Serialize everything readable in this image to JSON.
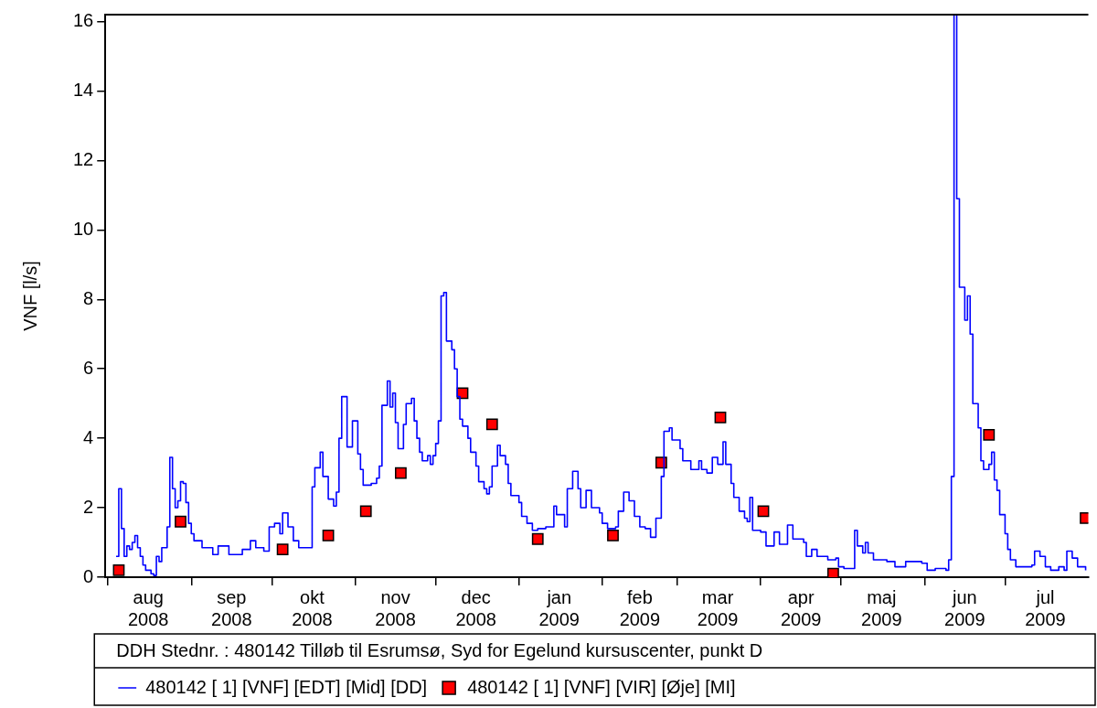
{
  "chart_data": {
    "type": "step",
    "ylabel": "VNF [l/s]",
    "legend_title": "DDH Stednr. : 480142 Tilløb til Esrumsø, Syd for Egelund kursuscenter, punkt D",
    "legend": "bottom",
    "grid": false,
    "xlim": [
      "2008-07-31",
      "2009-08-01"
    ],
    "xticks": [
      {
        "value": "2008-08-01",
        "label": null
      },
      {
        "value": "2008-08-16",
        "label": "aug 2008"
      },
      {
        "value": "2008-09-01",
        "label": null
      },
      {
        "value": "2008-09-16",
        "label": "sep 2008"
      },
      {
        "value": "2008-10-01",
        "label": null
      },
      {
        "value": "2008-10-16",
        "label": "okt 2008"
      },
      {
        "value": "2008-11-01",
        "label": null
      },
      {
        "value": "2008-11-16",
        "label": "nov 2008"
      },
      {
        "value": "2008-12-01",
        "label": null
      },
      {
        "value": "2008-12-16",
        "label": "dec 2008"
      },
      {
        "value": "2009-01-01",
        "label": null
      },
      {
        "value": "2009-01-16",
        "label": "jan 2009"
      },
      {
        "value": "2009-02-01",
        "label": null
      },
      {
        "value": "2009-02-15",
        "label": "feb 2009"
      },
      {
        "value": "2009-03-01",
        "label": null
      },
      {
        "value": "2009-03-16",
        "label": "mar 2009"
      },
      {
        "value": "2009-04-01",
        "label": null
      },
      {
        "value": "2009-04-16",
        "label": "apr 2009"
      },
      {
        "value": "2009-05-01",
        "label": null
      },
      {
        "value": "2009-05-16",
        "label": "maj 2009"
      },
      {
        "value": "2009-06-01",
        "label": null
      },
      {
        "value": "2009-06-16",
        "label": "jun 2009"
      },
      {
        "value": "2009-07-01",
        "label": null
      },
      {
        "value": "2009-07-16",
        "label": "jul 2009"
      }
    ],
    "ylim": [
      0,
      16.2
    ],
    "yticks": [
      0,
      2,
      4,
      6,
      8,
      10,
      12,
      14,
      16
    ],
    "series": [
      {
        "name": "480142 [ 1] [VNF] [EDT] [Mid] [DD]",
        "color": "#0000ff",
        "marker": "none",
        "line_style": "solid",
        "x": [
          "2008-08-04",
          "2008-08-05",
          "2008-08-06",
          "2008-08-07",
          "2008-08-08",
          "2008-08-09",
          "2008-08-10",
          "2008-08-11",
          "2008-08-12",
          "2008-08-13",
          "2008-08-14",
          "2008-08-15",
          "2008-08-17",
          "2008-08-18",
          "2008-08-19",
          "2008-08-20",
          "2008-08-21",
          "2008-08-23",
          "2008-08-24",
          "2008-08-25",
          "2008-08-26",
          "2008-08-27",
          "2008-08-28",
          "2008-08-29",
          "2008-08-30",
          "2008-08-31",
          "2008-09-01",
          "2008-09-02",
          "2008-09-05",
          "2008-09-09",
          "2008-09-11",
          "2008-09-15",
          "2008-09-20",
          "2008-09-23",
          "2008-09-25",
          "2008-09-28",
          "2008-09-30",
          "2008-10-02",
          "2008-10-04",
          "2008-10-05",
          "2008-10-07",
          "2008-10-09",
          "2008-10-11",
          "2008-10-15",
          "2008-10-16",
          "2008-10-17",
          "2008-10-19",
          "2008-10-20",
          "2008-10-22",
          "2008-10-24",
          "2008-10-25",
          "2008-10-26",
          "2008-10-27",
          "2008-10-29",
          "2008-10-31",
          "2008-11-02",
          "2008-11-03",
          "2008-11-04",
          "2008-11-07",
          "2008-11-09",
          "2008-11-10",
          "2008-11-11",
          "2008-11-13",
          "2008-11-14",
          "2008-11-15",
          "2008-11-16",
          "2008-11-17",
          "2008-11-19",
          "2008-11-20",
          "2008-11-22",
          "2008-11-23",
          "2008-11-24",
          "2008-11-25",
          "2008-11-26",
          "2008-11-28",
          "2008-11-29",
          "2008-11-30",
          "2008-12-01",
          "2008-12-02",
          "2008-12-03",
          "2008-12-04",
          "2008-12-05",
          "2008-12-07",
          "2008-12-08",
          "2008-12-09",
          "2008-12-10",
          "2008-12-11",
          "2008-12-13",
          "2008-12-14",
          "2008-12-16",
          "2008-12-17",
          "2008-12-19",
          "2008-12-20",
          "2008-12-21",
          "2008-12-22",
          "2008-12-24",
          "2008-12-25",
          "2008-12-27",
          "2008-12-28",
          "2008-12-29",
          "2009-01-01",
          "2009-01-02",
          "2009-01-04",
          "2009-01-06",
          "2009-01-08",
          "2009-01-11",
          "2009-01-14",
          "2009-01-15",
          "2009-01-18",
          "2009-01-19",
          "2009-01-21",
          "2009-01-23",
          "2009-01-24",
          "2009-01-26",
          "2009-01-28",
          "2009-01-31",
          "2009-02-01",
          "2009-02-03",
          "2009-02-06",
          "2009-02-07",
          "2009-02-09",
          "2009-02-11",
          "2009-02-13",
          "2009-02-15",
          "2009-02-17",
          "2009-02-19",
          "2009-02-21",
          "2009-02-23",
          "2009-02-24",
          "2009-02-26",
          "2009-02-27",
          "2009-03-02",
          "2009-03-03",
          "2009-03-06",
          "2009-03-09",
          "2009-03-10",
          "2009-03-12",
          "2009-03-14",
          "2009-03-16",
          "2009-03-18",
          "2009-03-19",
          "2009-03-21",
          "2009-03-22",
          "2009-03-24",
          "2009-03-26",
          "2009-03-27",
          "2009-03-28",
          "2009-03-29",
          "2009-04-01",
          "2009-04-03",
          "2009-04-06",
          "2009-04-08",
          "2009-04-11",
          "2009-04-13",
          "2009-04-17",
          "2009-04-18",
          "2009-04-20",
          "2009-04-22",
          "2009-04-26",
          "2009-04-29",
          "2009-04-30",
          "2009-05-02",
          "2009-05-05",
          "2009-05-06",
          "2009-05-07",
          "2009-05-09",
          "2009-05-10",
          "2009-05-11",
          "2009-05-13",
          "2009-05-18",
          "2009-05-21",
          "2009-05-25",
          "2009-05-31",
          "2009-06-02",
          "2009-06-05",
          "2009-06-09",
          "2009-06-10",
          "2009-06-11",
          "2009-06-12",
          "2009-06-13",
          "2009-06-14",
          "2009-06-16",
          "2009-06-17",
          "2009-06-18",
          "2009-06-19",
          "2009-06-21",
          "2009-06-22",
          "2009-06-23",
          "2009-06-25",
          "2009-06-26",
          "2009-06-27",
          "2009-06-28",
          "2009-06-29",
          "2009-07-01",
          "2009-07-02",
          "2009-07-03",
          "2009-07-05",
          "2009-07-11",
          "2009-07-12",
          "2009-07-14",
          "2009-07-16",
          "2009-07-18",
          "2009-07-21",
          "2009-07-23",
          "2009-07-24",
          "2009-07-26",
          "2009-07-28",
          "2009-07-31"
        ],
        "values": [
          0.6,
          2.55,
          1.4,
          0.6,
          0.9,
          0.8,
          1.0,
          1.2,
          0.85,
          0.6,
          0.35,
          0.2,
          0.1,
          0.05,
          0.6,
          0.45,
          0.85,
          1.45,
          3.45,
          2.55,
          2.0,
          2.2,
          2.75,
          2.7,
          2.15,
          1.55,
          1.25,
          1.05,
          0.85,
          0.65,
          0.9,
          0.65,
          0.8,
          1.05,
          0.85,
          0.75,
          1.45,
          1.55,
          1.25,
          1.85,
          1.45,
          1.05,
          0.85,
          0.85,
          2.6,
          3.15,
          3.6,
          2.9,
          2.25,
          2.05,
          2.45,
          4.0,
          5.2,
          3.75,
          4.5,
          3.55,
          3.1,
          2.65,
          2.7,
          2.85,
          3.2,
          4.95,
          5.65,
          4.9,
          5.3,
          4.45,
          3.7,
          4.4,
          5.0,
          5.15,
          4.5,
          4.0,
          3.6,
          3.35,
          3.5,
          3.25,
          3.5,
          3.85,
          4.5,
          8.1,
          8.2,
          6.8,
          6.55,
          6.0,
          5.2,
          4.55,
          4.35,
          4.0,
          3.6,
          3.2,
          2.75,
          2.55,
          2.4,
          2.6,
          3.2,
          3.8,
          3.5,
          3.25,
          2.7,
          2.35,
          2.15,
          1.75,
          1.55,
          1.35,
          1.4,
          1.45,
          2.05,
          1.8,
          1.45,
          2.55,
          3.05,
          2.55,
          2.0,
          2.5,
          2.0,
          1.85,
          1.55,
          1.4,
          1.45,
          1.9,
          2.45,
          2.2,
          1.75,
          1.45,
          1.4,
          1.15,
          1.7,
          2.9,
          4.2,
          4.3,
          3.95,
          3.7,
          3.35,
          3.1,
          3.35,
          3.1,
          3.0,
          3.45,
          3.25,
          3.9,
          3.25,
          2.7,
          2.3,
          1.9,
          1.7,
          1.6,
          2.3,
          1.35,
          1.3,
          0.9,
          1.3,
          0.95,
          1.5,
          1.1,
          1.0,
          0.6,
          0.8,
          0.6,
          0.5,
          0.55,
          0.3,
          0.25,
          0.25,
          1.35,
          0.9,
          0.7,
          1.0,
          0.7,
          0.5,
          0.45,
          0.3,
          0.45,
          0.4,
          0.2,
          0.25,
          0.2,
          0.5,
          2.9,
          16.2,
          10.9,
          8.35,
          7.4,
          8.1,
          7.0,
          5.0,
          4.3,
          3.35,
          3.1,
          3.25,
          3.6,
          2.8,
          2.5,
          1.8,
          1.25,
          0.8,
          0.5,
          0.3,
          0.35,
          0.75,
          0.6,
          0.3,
          0.2,
          0.3,
          0.2,
          0.75,
          0.55,
          0.3,
          0.2
        ]
      },
      {
        "name": "480142 [ 1] [VNF] [VIR] [Øje] [MI]",
        "type": "scatter",
        "color": "#ff0000",
        "marker": "square",
        "x": [
          "2008-08-05",
          "2008-08-28",
          "2008-10-05",
          "2008-10-22",
          "2008-11-05",
          "2008-11-18",
          "2008-12-11",
          "2008-12-22",
          "2009-01-08",
          "2009-02-05",
          "2009-02-23",
          "2009-03-17",
          "2009-04-02",
          "2009-04-28",
          "2009-06-25",
          "2009-07-31"
        ],
        "values": [
          0.2,
          1.6,
          0.8,
          1.2,
          1.9,
          3.0,
          5.3,
          4.4,
          1.1,
          1.2,
          3.3,
          4.6,
          1.9,
          0.1,
          4.1,
          1.7
        ]
      }
    ]
  }
}
